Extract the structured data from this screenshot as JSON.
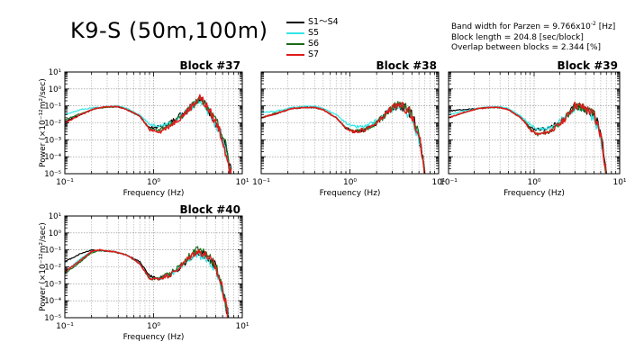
{
  "title": "K9-S (50m,100m)",
  "legend": [
    {
      "name": "S1〜S4",
      "color": "#000000"
    },
    {
      "name": "S5",
      "color": "#33e6e6"
    },
    {
      "name": "S6",
      "color": "#1a6b1a"
    },
    {
      "name": "S7",
      "color": "#e01a1a"
    }
  ],
  "params": {
    "bandwidth_prefix": "Band width for Parzen = 9.766x10",
    "bandwidth_exp": "-2",
    "bandwidth_suffix": " [Hz]",
    "block_length": "Block length = 204.8 [sec/block]",
    "overlap": "Overlap between blocks = 2.344 [%]"
  },
  "chart_data": [
    {
      "type": "line",
      "title": "Block #37",
      "xlabel": "Frequency (Hz)",
      "ylabel": "Power (×10⁻¹²m²/sec)",
      "x_scale": "log",
      "y_scale": "log",
      "xlim": [
        0.1,
        10
      ],
      "ylim": [
        1e-05,
        10
      ],
      "x_ticks": [
        "10⁻¹",
        "10⁰",
        "10¹"
      ],
      "y_ticks": [
        "10¹",
        "10⁰",
        "10⁻¹",
        "10⁻²",
        "10⁻³",
        "10⁻⁴",
        "10⁻⁵"
      ],
      "grid": true,
      "series": [
        {
          "name": "S1〜S4",
          "x": [
            0.1,
            0.15,
            0.22,
            0.3,
            0.4,
            0.5,
            0.7,
            0.9,
            1.2,
            1.6,
            2.0,
            2.5,
            3.0,
            3.3,
            3.8,
            4.5,
            5.5,
            6.5,
            7.5
          ],
          "y": [
            0.012,
            0.03,
            0.07,
            0.09,
            0.09,
            0.06,
            0.025,
            0.005,
            0.006,
            0.012,
            0.03,
            0.08,
            0.2,
            0.3,
            0.12,
            0.03,
            0.004,
            0.0003,
            1e-05
          ]
        },
        {
          "name": "S5",
          "x": [
            0.1,
            0.15,
            0.22,
            0.3,
            0.4,
            0.5,
            0.7,
            0.9,
            1.2,
            1.6,
            2.0,
            2.5,
            3.0,
            3.3,
            3.8,
            4.5,
            5.5,
            6.5,
            7.5
          ],
          "y": [
            0.03,
            0.06,
            0.08,
            0.09,
            0.1,
            0.07,
            0.03,
            0.008,
            0.007,
            0.01,
            0.025,
            0.06,
            0.15,
            0.25,
            0.1,
            0.025,
            0.003,
            0.0002,
            1e-05
          ]
        },
        {
          "name": "S6",
          "x": [
            0.1,
            0.15,
            0.22,
            0.3,
            0.4,
            0.5,
            0.7,
            0.9,
            1.2,
            1.6,
            2.0,
            2.5,
            3.0,
            3.3,
            3.8,
            4.5,
            5.5,
            6.5,
            7.5
          ],
          "y": [
            0.015,
            0.035,
            0.07,
            0.085,
            0.09,
            0.06,
            0.025,
            0.004,
            0.004,
            0.009,
            0.022,
            0.06,
            0.16,
            0.28,
            0.12,
            0.03,
            0.006,
            0.0005,
            1e-05
          ]
        },
        {
          "name": "S7",
          "x": [
            0.1,
            0.15,
            0.22,
            0.3,
            0.4,
            0.5,
            0.7,
            0.9,
            1.2,
            1.6,
            2.0,
            2.5,
            3.0,
            3.3,
            3.8,
            4.5,
            5.5,
            6.5,
            7.5
          ],
          "y": [
            0.01,
            0.03,
            0.07,
            0.09,
            0.09,
            0.06,
            0.025,
            0.004,
            0.003,
            0.008,
            0.02,
            0.06,
            0.18,
            0.35,
            0.13,
            0.03,
            0.004,
            0.0002,
            1e-05
          ]
        }
      ]
    },
    {
      "type": "line",
      "title": "Block #38",
      "xlabel": "Frequency (Hz)",
      "ylabel": "",
      "x_scale": "log",
      "y_scale": "log",
      "xlim": [
        0.1,
        10
      ],
      "ylim": [
        1e-05,
        10
      ],
      "x_ticks": [
        "10⁻¹",
        "10⁰",
        "10¹"
      ],
      "y_ticks": [],
      "grid": true,
      "series": [
        {
          "name": "S1〜S4",
          "x": [
            0.1,
            0.15,
            0.22,
            0.3,
            0.4,
            0.5,
            0.7,
            0.9,
            1.1,
            1.5,
            2.0,
            2.5,
            3.0,
            3.5,
            4.0,
            5.0,
            6.0,
            7.0
          ],
          "y": [
            0.02,
            0.035,
            0.07,
            0.08,
            0.08,
            0.06,
            0.02,
            0.005,
            0.003,
            0.004,
            0.01,
            0.03,
            0.08,
            0.1,
            0.08,
            0.03,
            0.002,
            1e-05
          ]
        },
        {
          "name": "S5",
          "x": [
            0.1,
            0.15,
            0.22,
            0.3,
            0.4,
            0.5,
            0.7,
            0.9,
            1.1,
            1.5,
            2.0,
            2.5,
            3.0,
            3.5,
            4.0,
            5.0,
            6.0,
            7.0
          ],
          "y": [
            0.04,
            0.05,
            0.08,
            0.09,
            0.1,
            0.07,
            0.03,
            0.01,
            0.006,
            0.006,
            0.012,
            0.03,
            0.07,
            0.09,
            0.07,
            0.02,
            0.001,
            1e-05
          ]
        },
        {
          "name": "S6",
          "x": [
            0.1,
            0.15,
            0.22,
            0.3,
            0.4,
            0.5,
            0.7,
            0.9,
            1.1,
            1.5,
            2.0,
            2.5,
            3.0,
            3.5,
            4.0,
            5.0,
            6.0,
            7.0
          ],
          "y": [
            0.02,
            0.04,
            0.07,
            0.08,
            0.08,
            0.06,
            0.02,
            0.005,
            0.003,
            0.004,
            0.01,
            0.03,
            0.08,
            0.12,
            0.1,
            0.04,
            0.003,
            1e-05
          ]
        },
        {
          "name": "S7",
          "x": [
            0.1,
            0.15,
            0.22,
            0.3,
            0.4,
            0.5,
            0.7,
            0.9,
            1.1,
            1.5,
            2.0,
            2.5,
            3.0,
            3.5,
            4.0,
            5.0,
            6.0,
            7.0
          ],
          "y": [
            0.02,
            0.035,
            0.07,
            0.08,
            0.08,
            0.06,
            0.02,
            0.005,
            0.003,
            0.004,
            0.009,
            0.028,
            0.08,
            0.1,
            0.09,
            0.03,
            0.002,
            1e-05
          ]
        }
      ]
    },
    {
      "type": "line",
      "title": "Block #39",
      "xlabel": "Frequency (Hz)",
      "ylabel": "",
      "x_scale": "log",
      "y_scale": "log",
      "xlim": [
        0.1,
        10
      ],
      "ylim": [
        1e-05,
        10
      ],
      "x_ticks": [
        "10⁻¹",
        "10⁰",
        "10¹"
      ],
      "y_ticks": [],
      "grid": true,
      "series": [
        {
          "name": "S1〜S4",
          "x": [
            0.1,
            0.15,
            0.22,
            0.3,
            0.4,
            0.5,
            0.7,
            0.9,
            1.1,
            1.5,
            2.0,
            2.5,
            3.0,
            3.5,
            4.0,
            5.0,
            6.0,
            7.0
          ],
          "y": [
            0.05,
            0.06,
            0.07,
            0.08,
            0.08,
            0.06,
            0.02,
            0.005,
            0.004,
            0.005,
            0.01,
            0.03,
            0.1,
            0.08,
            0.06,
            0.03,
            0.003,
            1e-05
          ]
        },
        {
          "name": "S5",
          "x": [
            0.1,
            0.15,
            0.22,
            0.3,
            0.4,
            0.5,
            0.7,
            0.9,
            1.1,
            1.5,
            2.0,
            2.5,
            3.0,
            3.5,
            4.0,
            5.0,
            6.0,
            7.0
          ],
          "y": [
            0.03,
            0.05,
            0.07,
            0.09,
            0.09,
            0.07,
            0.025,
            0.008,
            0.004,
            0.005,
            0.012,
            0.035,
            0.08,
            0.07,
            0.05,
            0.02,
            0.001,
            1e-05
          ]
        },
        {
          "name": "S6",
          "x": [
            0.1,
            0.15,
            0.22,
            0.3,
            0.4,
            0.5,
            0.7,
            0.9,
            1.1,
            1.5,
            2.0,
            2.5,
            3.0,
            3.5,
            4.0,
            5.0,
            6.0,
            7.0
          ],
          "y": [
            0.02,
            0.04,
            0.07,
            0.08,
            0.08,
            0.06,
            0.02,
            0.005,
            0.002,
            0.003,
            0.009,
            0.03,
            0.1,
            0.09,
            0.07,
            0.03,
            0.002,
            1e-05
          ]
        },
        {
          "name": "S7",
          "x": [
            0.1,
            0.15,
            0.22,
            0.3,
            0.4,
            0.5,
            0.7,
            0.9,
            1.1,
            1.5,
            2.0,
            2.5,
            3.0,
            3.5,
            4.0,
            5.0,
            6.0,
            7.0
          ],
          "y": [
            0.02,
            0.04,
            0.07,
            0.08,
            0.08,
            0.06,
            0.02,
            0.004,
            0.002,
            0.003,
            0.008,
            0.03,
            0.11,
            0.09,
            0.07,
            0.03,
            0.002,
            1e-05
          ]
        }
      ]
    },
    {
      "type": "line",
      "title": "Block #40",
      "xlabel": "Frequency (Hz)",
      "ylabel": "Power (×10⁻¹²m²/sec)",
      "x_scale": "log",
      "y_scale": "log",
      "xlim": [
        0.1,
        10
      ],
      "ylim": [
        1e-05,
        10
      ],
      "x_ticks": [
        "10⁻¹",
        "10⁰",
        "10¹"
      ],
      "y_ticks": [
        "10¹",
        "10⁰",
        "10⁻¹",
        "10⁻²",
        "10⁻³",
        "10⁻⁴",
        "10⁻⁵"
      ],
      "grid": true,
      "series": [
        {
          "name": "S1〜S4",
          "x": [
            0.1,
            0.15,
            0.2,
            0.25,
            0.35,
            0.5,
            0.7,
            0.9,
            1.1,
            1.5,
            2.0,
            2.5,
            3.0,
            3.5,
            4.0,
            5.0,
            6.0,
            7.0
          ],
          "y": [
            0.02,
            0.06,
            0.1,
            0.09,
            0.08,
            0.05,
            0.02,
            0.003,
            0.002,
            0.003,
            0.01,
            0.03,
            0.07,
            0.06,
            0.04,
            0.01,
            0.0005,
            1e-05
          ]
        },
        {
          "name": "S5",
          "x": [
            0.1,
            0.15,
            0.2,
            0.25,
            0.35,
            0.5,
            0.7,
            0.9,
            1.1,
            1.5,
            2.0,
            2.5,
            3.0,
            3.5,
            4.0,
            5.0,
            6.0,
            7.0
          ],
          "y": [
            0.005,
            0.03,
            0.08,
            0.09,
            0.08,
            0.05,
            0.015,
            0.002,
            0.002,
            0.003,
            0.008,
            0.025,
            0.05,
            0.04,
            0.03,
            0.008,
            0.0004,
            1e-05
          ]
        },
        {
          "name": "S6",
          "x": [
            0.1,
            0.15,
            0.2,
            0.25,
            0.35,
            0.5,
            0.7,
            0.9,
            1.1,
            1.5,
            2.0,
            2.5,
            3.0,
            3.5,
            4.0,
            5.0,
            6.0,
            7.0
          ],
          "y": [
            0.004,
            0.02,
            0.07,
            0.09,
            0.08,
            0.05,
            0.015,
            0.002,
            0.002,
            0.004,
            0.012,
            0.04,
            0.1,
            0.08,
            0.05,
            0.012,
            0.0006,
            1e-05
          ]
        },
        {
          "name": "S7",
          "x": [
            0.1,
            0.15,
            0.2,
            0.25,
            0.35,
            0.5,
            0.7,
            0.9,
            1.1,
            1.5,
            2.0,
            2.5,
            3.0,
            3.5,
            4.0,
            5.0,
            6.0,
            7.0
          ],
          "y": [
            0.005,
            0.025,
            0.08,
            0.1,
            0.08,
            0.05,
            0.015,
            0.002,
            0.002,
            0.003,
            0.01,
            0.035,
            0.08,
            0.07,
            0.045,
            0.01,
            0.0005,
            1e-05
          ]
        }
      ]
    }
  ]
}
